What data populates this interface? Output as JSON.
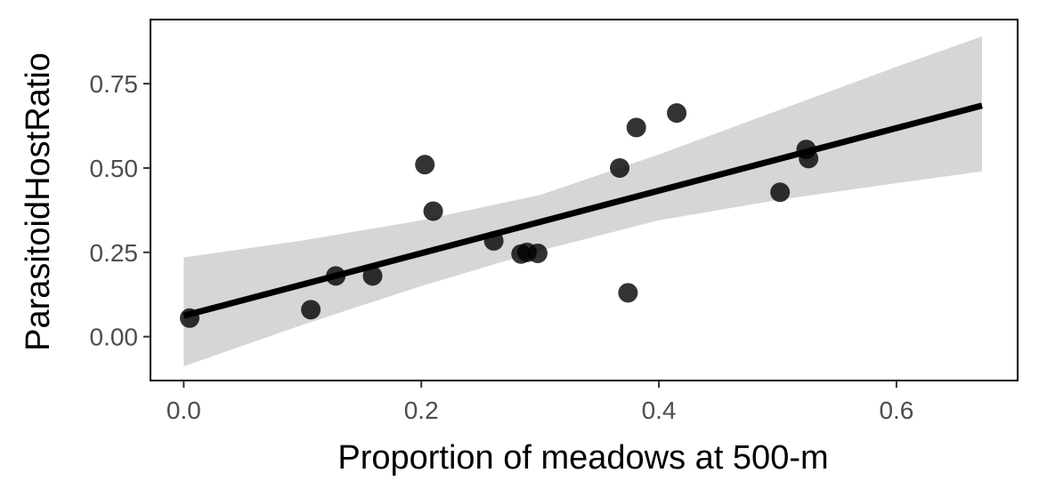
{
  "chart_data": {
    "type": "scatter",
    "xlabel": "Proportion of meadows at 500-m",
    "ylabel": "ParasitoidHostRatio",
    "xlim": [
      -0.028,
      0.702
    ],
    "ylim": [
      -0.13,
      0.94
    ],
    "x_ticks": [
      {
        "value": 0.0,
        "label": "0.0"
      },
      {
        "value": 0.2,
        "label": "0.2"
      },
      {
        "value": 0.4,
        "label": "0.4"
      },
      {
        "value": 0.6,
        "label": "0.6"
      }
    ],
    "y_ticks": [
      {
        "value": 0.0,
        "label": "0.00"
      },
      {
        "value": 0.25,
        "label": "0.25"
      },
      {
        "value": 0.5,
        "label": "0.50"
      },
      {
        "value": 0.75,
        "label": "0.75"
      }
    ],
    "grid": false,
    "points": [
      {
        "x": 0.005,
        "y": 0.055
      },
      {
        "x": 0.107,
        "y": 0.08
      },
      {
        "x": 0.128,
        "y": 0.18
      },
      {
        "x": 0.159,
        "y": 0.18
      },
      {
        "x": 0.203,
        "y": 0.51
      },
      {
        "x": 0.21,
        "y": 0.372
      },
      {
        "x": 0.261,
        "y": 0.284
      },
      {
        "x": 0.284,
        "y": 0.245
      },
      {
        "x": 0.289,
        "y": 0.25
      },
      {
        "x": 0.298,
        "y": 0.247
      },
      {
        "x": 0.367,
        "y": 0.5
      },
      {
        "x": 0.374,
        "y": 0.13
      },
      {
        "x": 0.381,
        "y": 0.62
      },
      {
        "x": 0.415,
        "y": 0.663
      },
      {
        "x": 0.502,
        "y": 0.428
      },
      {
        "x": 0.524,
        "y": 0.555
      },
      {
        "x": 0.526,
        "y": 0.528
      }
    ],
    "fit_line": {
      "x": [
        0.0,
        0.672
      ],
      "y": [
        0.062,
        0.685
      ]
    },
    "confidence_band": {
      "x": [
        0.0,
        0.1,
        0.2,
        0.3,
        0.4,
        0.5,
        0.6,
        0.672
      ],
      "lower": [
        -0.088,
        0.035,
        0.15,
        0.255,
        0.345,
        0.405,
        0.455,
        0.49
      ],
      "upper": [
        0.235,
        0.285,
        0.345,
        0.42,
        0.54,
        0.67,
        0.8,
        0.89
      ]
    },
    "colors": {
      "point": "#000000",
      "line": "#000000",
      "band": "#d6d6d6",
      "panel_border": "#000000",
      "tick_text": "#4d4d4d",
      "title_text": "#000000"
    }
  }
}
